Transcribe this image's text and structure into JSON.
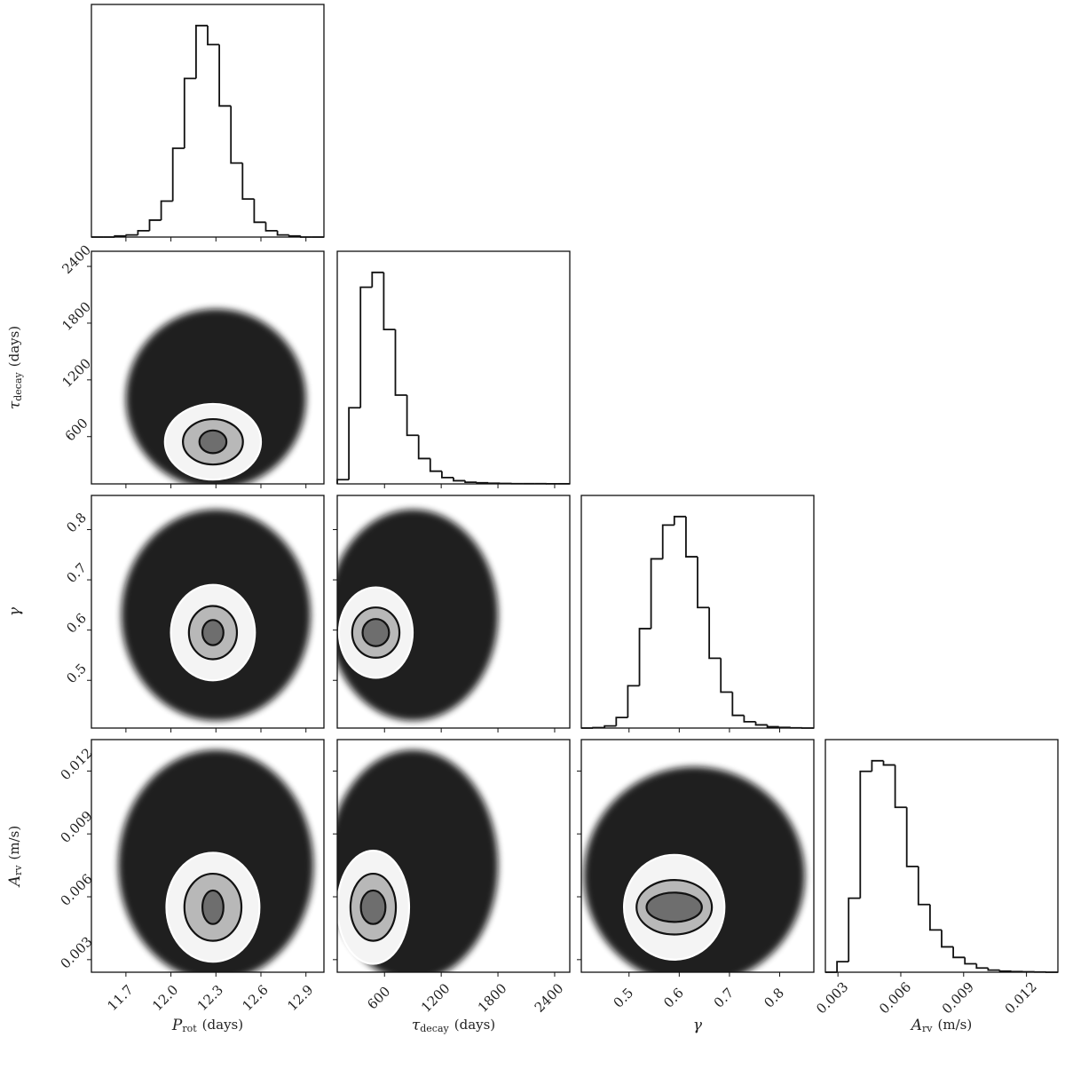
{
  "chart_data": {
    "type": "corner",
    "color": "#111111",
    "parameters": [
      {
        "label": {
          "symbol": "P",
          "subscript": "rot",
          "unit": "(days)"
        },
        "lim": [
          11.47,
          13.02
        ],
        "ticks": [
          11.7,
          {
            "value": 12,
            "label": "12.0"
          },
          12.3,
          12.6,
          12.9
        ]
      },
      {
        "label": {
          "symbol": "τ",
          "subscript": "decay",
          "unit": "(days)"
        },
        "lim": [
          100,
          2560
        ],
        "ticks": [
          600,
          1200,
          1800,
          2400
        ]
      },
      {
        "label": {
          "symbol": "γ"
        },
        "lim": [
          0.405,
          0.868
        ],
        "ticks": [
          0.5,
          0.6,
          0.7,
          0.8
        ]
      },
      {
        "label": {
          "symbol": "A",
          "subscript": "rv",
          "unit": "(m/s)"
        },
        "lim": [
          0.0024,
          0.0135
        ],
        "ticks": [
          0.003,
          0.006,
          0.009,
          0.012
        ]
      }
    ],
    "histograms": [
      {
        "bins": [
          11.47,
          11.5475,
          11.625,
          11.7025,
          11.78,
          11.8575,
          11.935,
          12.0125,
          12.09,
          12.1675,
          12.245,
          12.3225,
          12.4,
          12.4775,
          12.555,
          12.6325,
          12.71,
          12.7875,
          12.865,
          12.9425,
          13.02
        ],
        "counts": [
          0,
          0,
          0.005,
          0.01,
          0.03,
          0.08,
          0.17,
          0.42,
          0.75,
          1.0,
          0.91,
          0.62,
          0.35,
          0.18,
          0.07,
          0.03,
          0.01,
          0.005,
          0,
          0
        ]
      },
      {
        "bins": [
          100,
          223,
          346,
          469,
          592,
          715,
          838,
          961,
          1084,
          1207,
          1330,
          1453,
          1576,
          1699,
          1822,
          1945,
          2068,
          2191,
          2314,
          2437,
          2560
        ],
        "counts": [
          0.02,
          0.36,
          0.93,
          1.0,
          0.73,
          0.42,
          0.23,
          0.12,
          0.06,
          0.03,
          0.015,
          0.008,
          0.005,
          0.003,
          0.002,
          0.001,
          0.001,
          0.001,
          0.0005,
          0.0005
        ]
      },
      {
        "bins": [
          0.405,
          0.4282,
          0.4513,
          0.4745,
          0.4976,
          0.5208,
          0.5439,
          0.5671,
          0.5902,
          0.6134,
          0.6365,
          0.6597,
          0.6828,
          0.706,
          0.7291,
          0.7523,
          0.7754,
          0.7986,
          0.8217,
          0.8449,
          0.868
        ],
        "counts": [
          0,
          0.002,
          0.01,
          0.05,
          0.2,
          0.47,
          0.8,
          0.96,
          1.0,
          0.81,
          0.57,
          0.33,
          0.17,
          0.06,
          0.03,
          0.015,
          0.006,
          0.003,
          0.001,
          0
        ]
      },
      {
        "bins": [
          0.0024,
          0.002955,
          0.00351,
          0.004065,
          0.00462,
          0.005175,
          0.00573,
          0.006285,
          0.00684,
          0.007395,
          0.00795,
          0.008505,
          0.00906,
          0.009615,
          0.01017,
          0.010725,
          0.01128,
          0.011835,
          0.01239,
          0.012945,
          0.0135
        ],
        "counts": [
          0,
          0.05,
          0.35,
          0.95,
          1.0,
          0.98,
          0.78,
          0.5,
          0.32,
          0.2,
          0.12,
          0.07,
          0.04,
          0.02,
          0.01,
          0.005,
          0.003,
          0.002,
          0.001,
          0
        ]
      }
    ],
    "panels": [
      {
        "cloud": {
          "center": [
            12.3,
            1000
          ],
          "radius": [
            0.6,
            950
          ]
        },
        "center": [
          12.28,
          545
        ],
        "contours": [
          [
            0.32,
            400
          ],
          [
            0.2,
            240
          ],
          [
            0.09,
            120
          ]
        ]
      },
      {
        "cloud": {
          "center": [
            12.3,
            0.63
          ],
          "radius": [
            0.63,
            0.21
          ]
        },
        "center": [
          12.28,
          0.595
        ],
        "contours": [
          [
            0.28,
            0.095
          ],
          [
            0.16,
            0.053
          ],
          [
            0.07,
            0.025
          ]
        ]
      },
      {
        "cloud": {
          "center": [
            900,
            0.63
          ],
          "radius": [
            900,
            0.21
          ]
        },
        "center": [
          508,
          0.595
        ],
        "contours": [
          [
            390,
            0.09
          ],
          [
            250,
            0.05
          ],
          [
            140,
            0.027
          ]
        ]
      },
      {
        "cloud": {
          "center": [
            12.3,
            0.0075
          ],
          "radius": [
            0.65,
            0.0055
          ]
        },
        "center": [
          12.28,
          0.0055
        ],
        "contours": [
          [
            0.31,
            0.0026
          ],
          [
            0.19,
            0.0016
          ],
          [
            0.07,
            0.0008
          ]
        ]
      },
      {
        "cloud": {
          "center": [
            900,
            0.0075
          ],
          "radius": [
            900,
            0.0055
          ]
        },
        "center": [
          480,
          0.0055
        ],
        "contours": [
          [
            380,
            0.0027
          ],
          [
            240,
            0.0016
          ],
          [
            130,
            0.0008
          ]
        ]
      },
      {
        "cloud": {
          "center": [
            0.63,
            0.007
          ],
          "radius": [
            0.22,
            0.0052
          ]
        },
        "center": [
          0.59,
          0.0055
        ],
        "contours": [
          [
            0.1,
            0.0025
          ],
          [
            0.075,
            0.0013
          ],
          [
            0.055,
            0.0007
          ]
        ]
      }
    ]
  }
}
